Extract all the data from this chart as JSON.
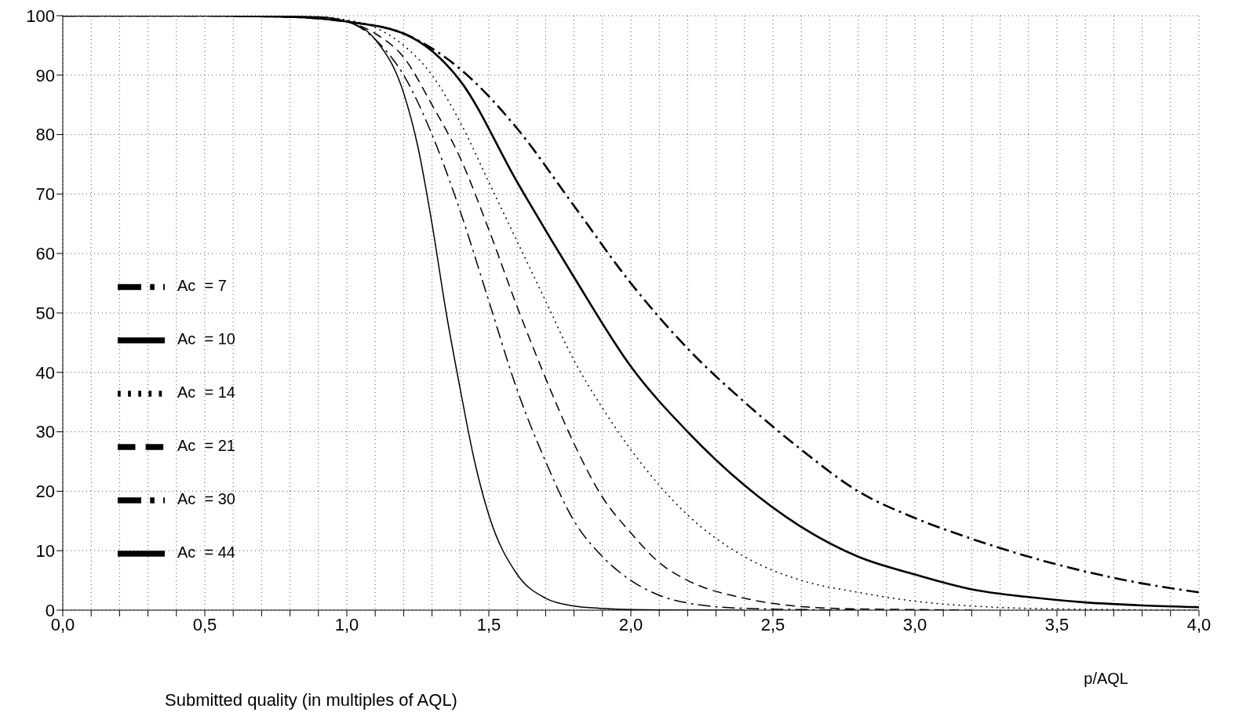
{
  "chart_data": {
    "type": "line",
    "xlabel": "p/AQL",
    "annotations": [
      "Submitted quality (in multiples of AQL)"
    ],
    "xlim": [
      0,
      4
    ],
    "xticks": [
      {
        "value": 0,
        "label": "0,0"
      },
      {
        "value": 0.1,
        "label": null
      },
      {
        "value": 0.2,
        "label": null
      },
      {
        "value": 0.3,
        "label": null
      },
      {
        "value": 0.4,
        "label": null
      },
      {
        "value": 0.5,
        "label": "0,5"
      },
      {
        "value": 0.6,
        "label": null
      },
      {
        "value": 0.7,
        "label": null
      },
      {
        "value": 0.8,
        "label": null
      },
      {
        "value": 0.9,
        "label": null
      },
      {
        "value": 1,
        "label": "1,0"
      },
      {
        "value": 1.1,
        "label": null
      },
      {
        "value": 1.2,
        "label": null
      },
      {
        "value": 1.3,
        "label": null
      },
      {
        "value": 1.4,
        "label": null
      },
      {
        "value": 1.5,
        "label": "1,5"
      },
      {
        "value": 1.6,
        "label": null
      },
      {
        "value": 1.7,
        "label": null
      },
      {
        "value": 1.8,
        "label": null
      },
      {
        "value": 1.9,
        "label": null
      },
      {
        "value": 2,
        "label": "2,0"
      },
      {
        "value": 2.1,
        "label": null
      },
      {
        "value": 2.2,
        "label": null
      },
      {
        "value": 2.3,
        "label": null
      },
      {
        "value": 2.4,
        "label": null
      },
      {
        "value": 2.5,
        "label": "2,5"
      },
      {
        "value": 2.6,
        "label": null
      },
      {
        "value": 2.7,
        "label": null
      },
      {
        "value": 2.8,
        "label": null
      },
      {
        "value": 2.9,
        "label": null
      },
      {
        "value": 3,
        "label": "3,0"
      },
      {
        "value": 3.1,
        "label": null
      },
      {
        "value": 3.2,
        "label": null
      },
      {
        "value": 3.3,
        "label": null
      },
      {
        "value": 3.4,
        "label": null
      },
      {
        "value": 3.5,
        "label": "3,5"
      },
      {
        "value": 3.6,
        "label": null
      },
      {
        "value": 3.7,
        "label": null
      },
      {
        "value": 3.8,
        "label": null
      },
      {
        "value": 3.9,
        "label": null
      },
      {
        "value": 4,
        "label": "4,0"
      }
    ],
    "ylim": [
      0,
      100
    ],
    "yticks": [
      0,
      10,
      20,
      30,
      40,
      50,
      60,
      70,
      80,
      90,
      100
    ],
    "grid": true,
    "legend": "left",
    "marker": "none",
    "series": [
      {
        "name": "Ac  = 7",
        "color": "#000000",
        "line_style": "dashdot",
        "x": [
          0,
          0.5,
          0.8,
          1.0,
          1.2,
          1.4,
          1.6,
          1.8,
          2.0,
          2.2,
          2.4,
          2.6,
          2.8,
          3.0,
          3.2,
          3.4,
          3.6,
          3.8,
          4.0
        ],
        "values": [
          100,
          100,
          99.8,
          99,
          97,
          91,
          81,
          68,
          55,
          44,
          35,
          27,
          20,
          15.5,
          12,
          9,
          6.5,
          4.5,
          3
        ]
      },
      {
        "name": "Ac  = 10",
        "color": "#000000",
        "line_style": "solid",
        "x": [
          0,
          0.5,
          0.8,
          1.0,
          1.2,
          1.4,
          1.6,
          1.8,
          2.0,
          2.2,
          2.4,
          2.6,
          2.8,
          3.0,
          3.2,
          3.4,
          3.6,
          3.8,
          4.0
        ],
        "values": [
          100,
          100,
          99.8,
          99,
          97,
          89,
          72,
          56,
          41,
          30,
          21,
          14,
          9,
          6,
          3.5,
          2.2,
          1.3,
          0.8,
          0.5
        ]
      },
      {
        "name": "Ac  = 14",
        "color": "#000000",
        "line_style": "dotted",
        "x": [
          0,
          0.5,
          0.9,
          1.0,
          1.1,
          1.2,
          1.3,
          1.4,
          1.5,
          1.6,
          1.7,
          1.8,
          1.9,
          2.0,
          2.2,
          2.4,
          2.6,
          2.8,
          3.0,
          3.2,
          3.5,
          4.0
        ],
        "values": [
          100,
          100,
          99.8,
          99.3,
          98,
          95,
          90,
          82,
          72,
          62,
          52,
          42,
          34,
          27,
          16,
          9,
          5,
          3,
          1.5,
          0.7,
          0.2,
          0
        ]
      },
      {
        "name": "Ac  = 21",
        "color": "#000000",
        "line_style": "dashed",
        "x": [
          0,
          0.5,
          0.9,
          1.0,
          1.1,
          1.2,
          1.3,
          1.4,
          1.5,
          1.6,
          1.7,
          1.8,
          1.9,
          2.0,
          2.1,
          2.2,
          2.4,
          2.6,
          2.8,
          3.0,
          3.2
        ],
        "values": [
          100,
          100,
          99.7,
          99,
          97,
          93,
          85,
          76,
          64,
          51,
          39,
          28,
          19,
          13,
          8,
          5,
          2,
          0.6,
          0.2,
          0.1,
          0
        ]
      },
      {
        "name": "Ac  = 30",
        "color": "#000000",
        "line_style": "dashdot",
        "x": [
          0,
          0.5,
          0.9,
          1.0,
          1.1,
          1.2,
          1.3,
          1.4,
          1.5,
          1.6,
          1.7,
          1.8,
          1.9,
          2.0,
          2.1,
          2.2,
          2.4,
          2.6,
          2.8
        ],
        "values": [
          100,
          100,
          99.6,
          99,
          96,
          90,
          80,
          67,
          52,
          37,
          25,
          15,
          9,
          5,
          2.5,
          1.2,
          0.3,
          0.1,
          0
        ]
      },
      {
        "name": "Ac  = 44",
        "color": "#000000",
        "line_style": "solid",
        "x": [
          0,
          0.5,
          0.9,
          1.0,
          1.1,
          1.2,
          1.25,
          1.3,
          1.35,
          1.4,
          1.45,
          1.5,
          1.6,
          1.7,
          1.8,
          1.9,
          2.0,
          2.2,
          2.4
        ],
        "values": [
          100,
          100,
          99.8,
          99,
          96,
          87,
          78,
          65,
          50,
          37,
          25,
          16,
          6,
          2,
          0.7,
          0.3,
          0.1,
          0,
          0
        ]
      }
    ]
  }
}
